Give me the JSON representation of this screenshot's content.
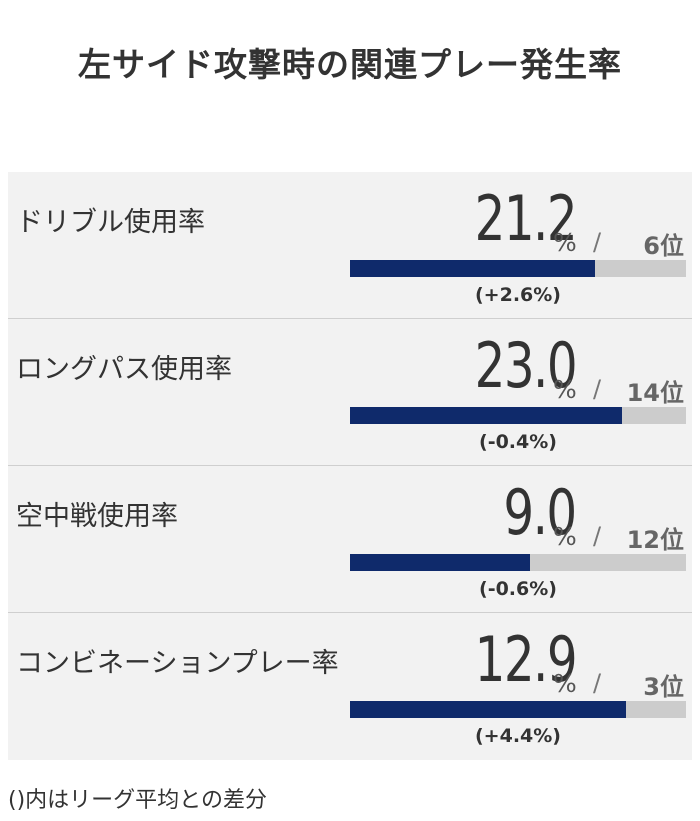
{
  "title": "左サイド攻撃時の関連プレー発生率",
  "metrics": [
    {
      "label": "ドリブル使用率",
      "value": "21.2",
      "unit": "%",
      "slash": "/",
      "rank": "6位",
      "bar_fraction": 0.73,
      "diff": "(+2.6%)"
    },
    {
      "label": "ロングパス使用率",
      "value": "23.0",
      "unit": "%",
      "slash": "/",
      "rank": "14位",
      "bar_fraction": 0.81,
      "diff": "(-0.4%)"
    },
    {
      "label": "空中戦使用率",
      "value": "9.0",
      "unit": "%",
      "slash": "/",
      "rank": "12位",
      "bar_fraction": 0.535,
      "diff": "(-0.6%)"
    },
    {
      "label": "コンビネーションプレー率",
      "value": "12.9",
      "unit": "%",
      "slash": "/",
      "rank": "3位",
      "bar_fraction": 0.82,
      "diff": "(+4.4%)"
    }
  ],
  "footnote": "()内はリーグ平均との差分",
  "colors": {
    "bar_fill": "#0f2a6b",
    "bar_track": "#cccccc",
    "panel_background": "#f2f2f2"
  }
}
